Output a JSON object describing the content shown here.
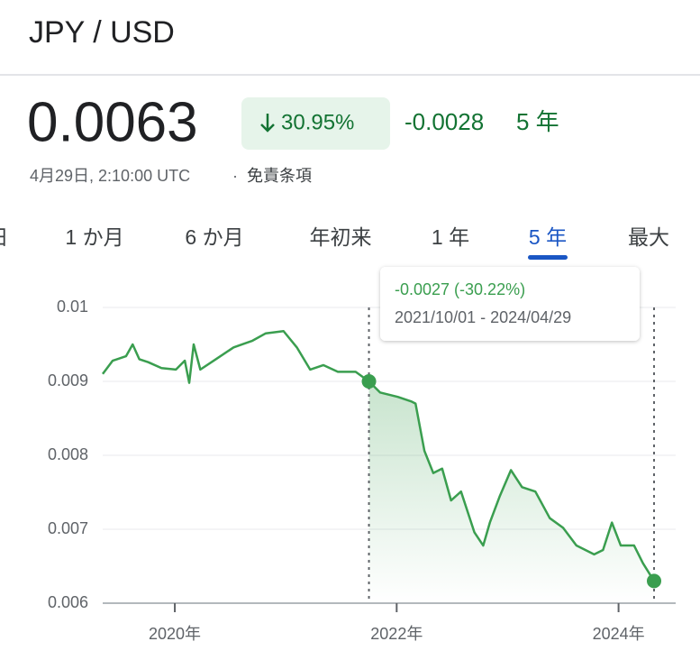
{
  "header": {
    "title": "JPY / USD"
  },
  "quote": {
    "price": "0.0063",
    "change_percent": "30.95%",
    "change_abs": "-0.0028",
    "period": "5 年",
    "timestamp": "4月29日, 2:10:00 UTC",
    "disclaimer": "免責条項"
  },
  "tabs": {
    "items": [
      "日",
      "1 か月",
      "6 か月",
      "年初来",
      "1 年",
      "5 年",
      "最大"
    ],
    "selected": "5 年"
  },
  "chart_data": {
    "type": "line",
    "x": [
      2019.35,
      2019.44,
      2019.56,
      2019.62,
      2019.68,
      2019.76,
      2019.88,
      2020.01,
      2020.09,
      2020.13,
      2020.17,
      2020.23,
      2020.37,
      2020.53,
      2020.7,
      2020.82,
      2020.98,
      2021.1,
      2021.22,
      2021.34,
      2021.47,
      2021.63,
      2021.75,
      2021.85,
      2022.01,
      2022.13,
      2022.17,
      2022.25,
      2022.33,
      2022.41,
      2022.49,
      2022.58,
      2022.7,
      2022.78,
      2022.84,
      2022.93,
      2023.03,
      2023.13,
      2023.25,
      2023.38,
      2023.5,
      2023.62,
      2023.78,
      2023.86,
      2023.94,
      2024.02,
      2024.14,
      2024.22,
      2024.32
    ],
    "series": [
      {
        "color": "#3a9e4f",
        "values": [
          0.0091,
          0.00928,
          0.00934,
          0.0095,
          0.0093,
          0.00926,
          0.00918,
          0.00916,
          0.00928,
          0.00898,
          0.0095,
          0.00916,
          0.0093,
          0.00946,
          0.00955,
          0.00965,
          0.00968,
          0.00946,
          0.00916,
          0.00922,
          0.00913,
          0.00913,
          0.009,
          0.00885,
          0.00879,
          0.00873,
          0.0087,
          0.00806,
          0.00776,
          0.00782,
          0.00739,
          0.00751,
          0.00696,
          0.00678,
          0.00709,
          0.00745,
          0.0078,
          0.00757,
          0.00751,
          0.00715,
          0.00702,
          0.00678,
          0.00666,
          0.00672,
          0.00709,
          0.00678,
          0.00678,
          0.00654,
          0.0063
        ]
      }
    ],
    "xlim": [
      2019.35,
      2024.32
    ],
    "xticks": [
      {
        "value": 2020,
        "label": "2020年"
      },
      {
        "value": 2022,
        "label": "2022年"
      },
      {
        "value": 2024,
        "label": "2024年"
      }
    ],
    "ylim": [
      0.006,
      0.01
    ],
    "yticks": [
      0.01,
      0.009,
      0.008,
      0.007,
      0.006
    ],
    "grid": true,
    "tooltip": {
      "change": "-0.0027 (-30.22%)",
      "range": "2021/10/01 - 2024/04/29"
    }
  }
}
